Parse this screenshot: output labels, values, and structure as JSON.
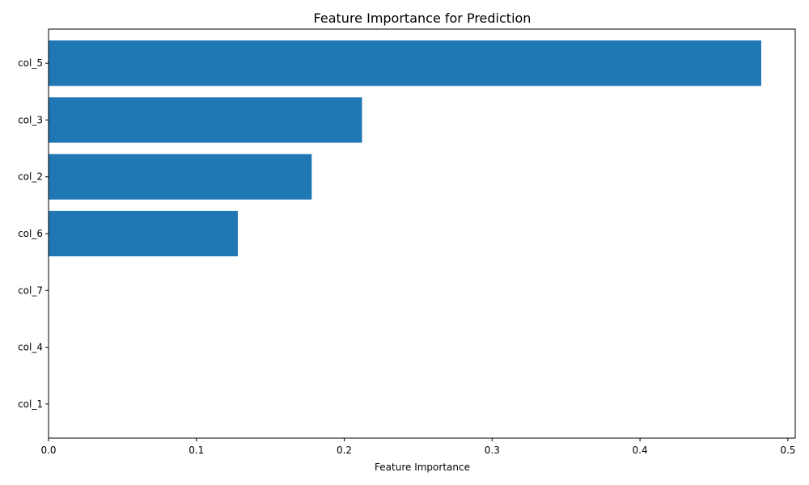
{
  "chart_data": {
    "type": "bar",
    "orientation": "horizontal",
    "title": "Feature Importance for Prediction",
    "xlabel": "Feature Importance",
    "ylabel": "",
    "categories": [
      "col_5",
      "col_3",
      "col_2",
      "col_6",
      "col_7",
      "col_4",
      "col_1"
    ],
    "values": [
      0.482,
      0.212,
      0.178,
      0.128,
      0.0,
      0.0,
      0.0
    ],
    "xlim": [
      0,
      0.505
    ],
    "xticks": [
      0.0,
      0.1,
      0.2,
      0.3,
      0.4,
      0.5
    ],
    "xtick_labels": [
      "0.0",
      "0.1",
      "0.2",
      "0.3",
      "0.4",
      "0.5"
    ],
    "bar_color": "#1f77b4",
    "grid": false,
    "legend": "none"
  }
}
